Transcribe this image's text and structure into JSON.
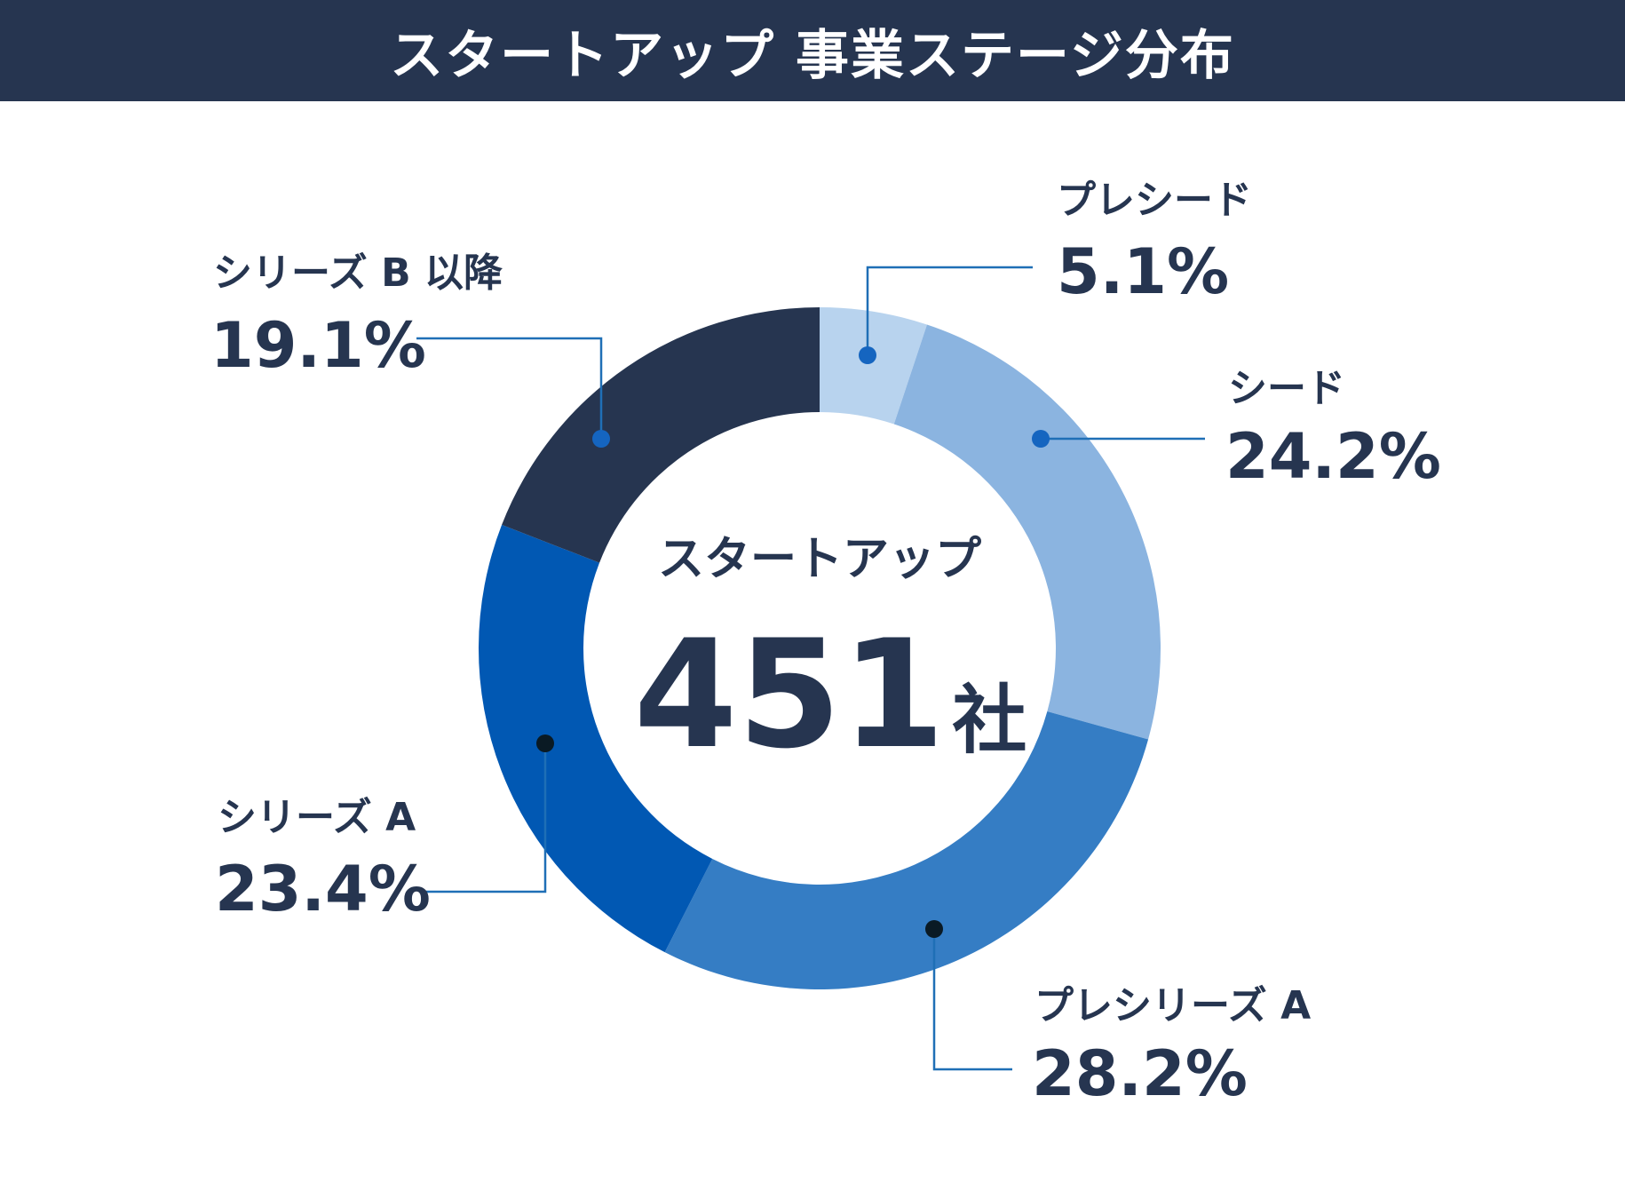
{
  "title": "スタートアップ 事業ステージ分布",
  "center": {
    "caption": "スタートアップ",
    "count": "451",
    "unit": "社"
  },
  "colors": {
    "header_bg": "#263550",
    "text": "#263550",
    "leader": "#1f6fb6"
  },
  "chart_data": {
    "type": "pie",
    "variant": "donut",
    "title": "スタートアップ 事業ステージ分布",
    "total": 451,
    "total_unit": "社",
    "categories": [
      "プレシード",
      "シード",
      "プレシリーズ A",
      "シリーズ A",
      "シリーズ B 以降"
    ],
    "values": [
      5.1,
      24.2,
      28.2,
      23.4,
      19.1
    ],
    "value_labels": [
      "5.1%",
      "24.2%",
      "28.2%",
      "23.4%",
      "19.1%"
    ],
    "unit": "%",
    "colors": [
      "#b8d3ee",
      "#8bb4e0",
      "#357dc4",
      "#0158b3",
      "#263550"
    ],
    "dot_colors": [
      "#1565c0",
      "#1565c0",
      "#0a1a24",
      "#0a1a24",
      "#1565c0"
    ]
  }
}
